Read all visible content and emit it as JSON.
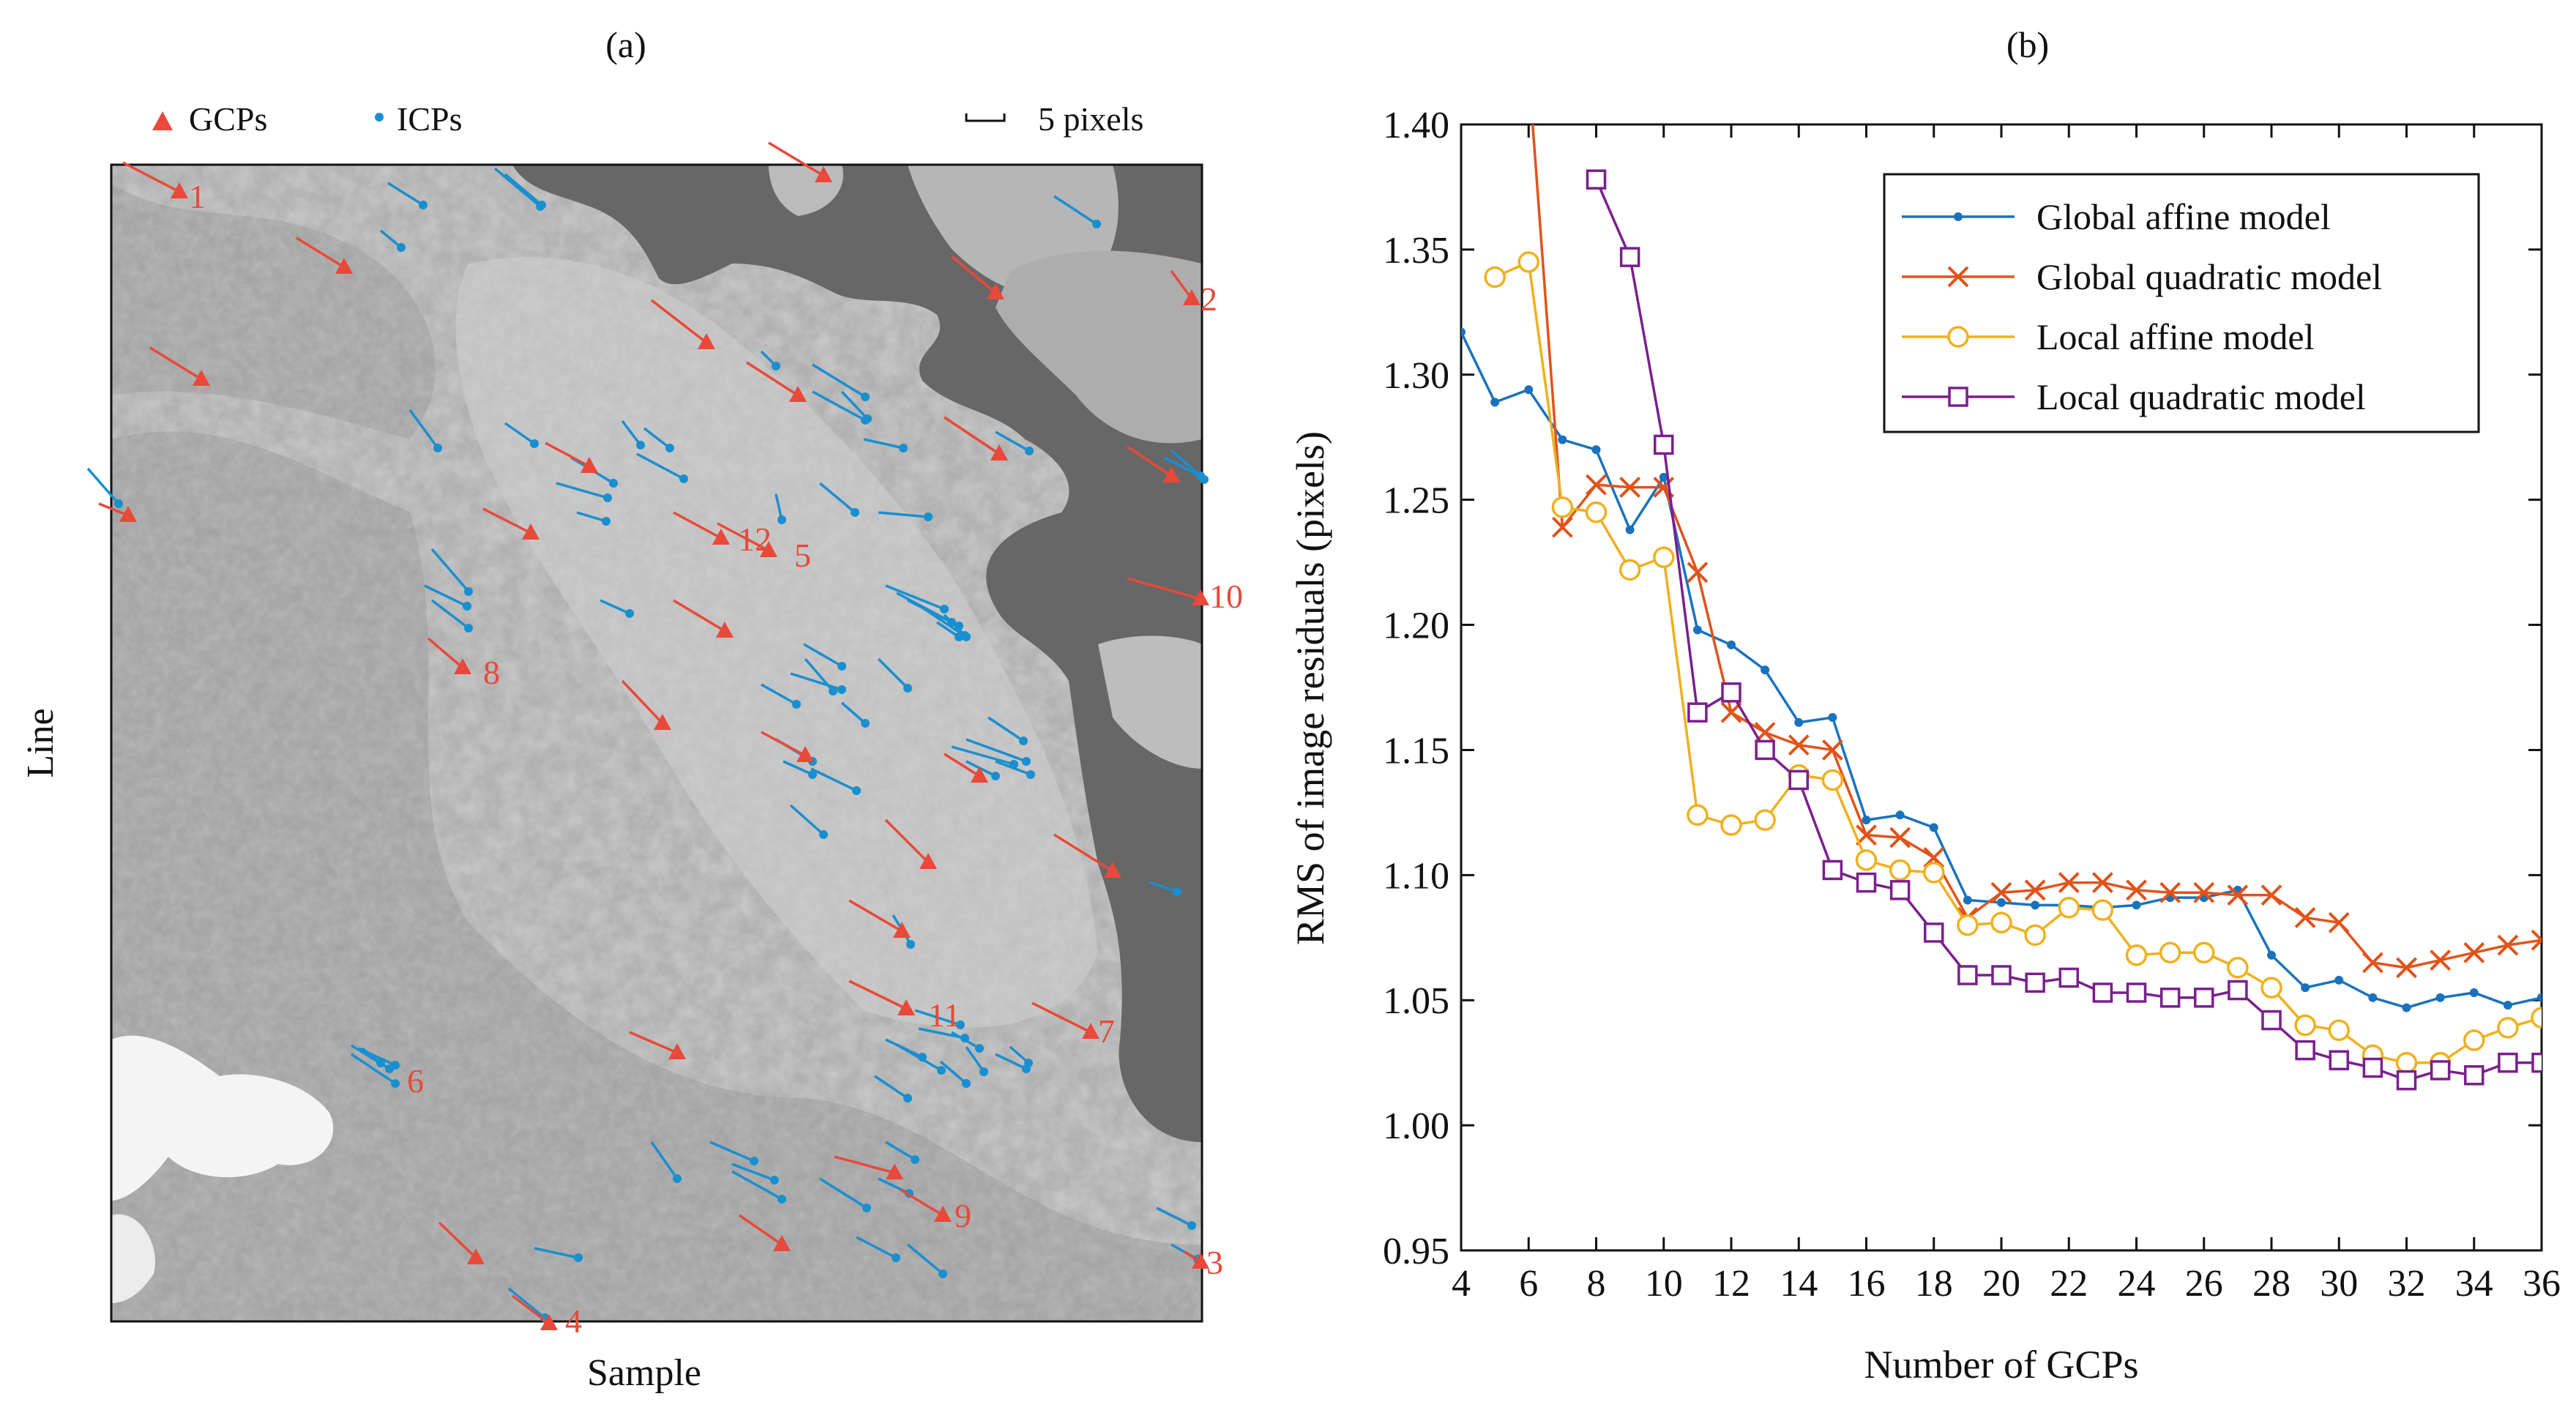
{
  "panel_a": {
    "label": "(a)",
    "legend": {
      "gcp": "GCPs",
      "icp": "ICPs",
      "scale": "5 pixels"
    },
    "xlabel": "Sample",
    "ylabel": "Line",
    "colors": {
      "gcp": "#e8493a",
      "icp": "#1a8fd0",
      "map_bg": "#b3b3b3",
      "water": "#6b6b6b"
    },
    "gcp_numbers": [
      "1",
      "2",
      "3",
      "4",
      "5",
      "6",
      "7",
      "8",
      "9",
      "10",
      "11",
      "12"
    ]
  },
  "panel_b": {
    "label": "(b)"
  },
  "chart_data": {
    "type": "line",
    "title": "",
    "xlabel": "Number of GCPs",
    "ylabel": "RMS of image residuals (pixels)",
    "xlim": [
      4,
      36
    ],
    "ylim": [
      0.95,
      1.4
    ],
    "xticks": [
      4,
      6,
      8,
      10,
      12,
      14,
      16,
      18,
      20,
      22,
      24,
      26,
      28,
      30,
      32,
      34,
      36
    ],
    "yticks": [
      0.95,
      1.0,
      1.05,
      1.1,
      1.15,
      1.2,
      1.25,
      1.3,
      1.35,
      1.4
    ],
    "ytick_labels": [
      "0.95",
      "1.00",
      "1.05",
      "1.10",
      "1.15",
      "1.20",
      "1.25",
      "1.30",
      "1.35",
      "1.40"
    ],
    "legend_position": "top-right",
    "series": [
      {
        "name": "Global affine model",
        "color": "#1a72bd",
        "marker": "dot",
        "x": [
          4,
          5,
          6,
          7,
          8,
          9,
          10,
          11,
          12,
          13,
          14,
          15,
          16,
          17,
          18,
          19,
          20,
          21,
          22,
          23,
          24,
          25,
          26,
          27,
          28,
          29,
          30,
          31,
          32,
          33,
          34,
          35,
          36
        ],
        "values": [
          1.317,
          1.289,
          1.294,
          1.274,
          1.27,
          1.238,
          1.259,
          1.198,
          1.192,
          1.182,
          1.161,
          1.163,
          1.122,
          1.124,
          1.119,
          1.09,
          1.089,
          1.088,
          1.088,
          1.087,
          1.088,
          1.091,
          1.091,
          1.094,
          1.068,
          1.055,
          1.058,
          1.051,
          1.047,
          1.051,
          1.053,
          1.048,
          1.051
        ]
      },
      {
        "name": "Global quadratic model",
        "color": "#e0531a",
        "marker": "x",
        "x": [
          6,
          7,
          8,
          9,
          10,
          11,
          12,
          13,
          14,
          15,
          16,
          17,
          18,
          19,
          20,
          21,
          22,
          23,
          24,
          25,
          26,
          27,
          28,
          29,
          30,
          31,
          32,
          33,
          34,
          35,
          36
        ],
        "values": [
          1.4,
          1.239,
          1.256,
          1.255,
          1.255,
          1.221,
          1.165,
          1.157,
          1.152,
          1.15,
          1.116,
          1.115,
          1.107,
          1.083,
          1.093,
          1.094,
          1.097,
          1.097,
          1.094,
          1.093,
          1.093,
          1.092,
          1.092,
          1.083,
          1.081,
          1.065,
          1.063,
          1.066,
          1.069,
          1.072,
          1.074
        ]
      },
      {
        "name": "Local affine model",
        "color": "#f0b01c",
        "marker": "circle",
        "x": [
          5,
          6,
          7,
          8,
          9,
          10,
          11,
          12,
          13,
          14,
          15,
          16,
          17,
          18,
          19,
          20,
          21,
          22,
          23,
          24,
          25,
          26,
          27,
          28,
          29,
          30,
          31,
          32,
          33,
          34,
          35,
          36
        ],
        "values": [
          1.339,
          1.345,
          1.247,
          1.245,
          1.222,
          1.227,
          1.124,
          1.12,
          1.122,
          1.14,
          1.138,
          1.106,
          1.102,
          1.101,
          1.08,
          1.081,
          1.076,
          1.087,
          1.086,
          1.068,
          1.069,
          1.069,
          1.063,
          1.055,
          1.04,
          1.038,
          1.028,
          1.025,
          1.025,
          1.034,
          1.039,
          1.043
        ]
      },
      {
        "name": "Local quadratic model",
        "color": "#7a1f8c",
        "marker": "square",
        "x": [
          8,
          9,
          10,
          11,
          12,
          13,
          14,
          15,
          16,
          17,
          18,
          19,
          20,
          21,
          22,
          23,
          24,
          25,
          26,
          27,
          28,
          29,
          30,
          31,
          32,
          33,
          34,
          35,
          36
        ],
        "values": [
          1.378,
          1.347,
          1.272,
          1.165,
          1.173,
          1.15,
          1.138,
          1.102,
          1.097,
          1.094,
          1.077,
          1.06,
          1.06,
          1.057,
          1.059,
          1.053,
          1.053,
          1.051,
          1.051,
          1.054,
          1.042,
          1.03,
          1.026,
          1.023,
          1.018,
          1.022,
          1.02,
          1.025,
          1.025
        ]
      }
    ]
  }
}
